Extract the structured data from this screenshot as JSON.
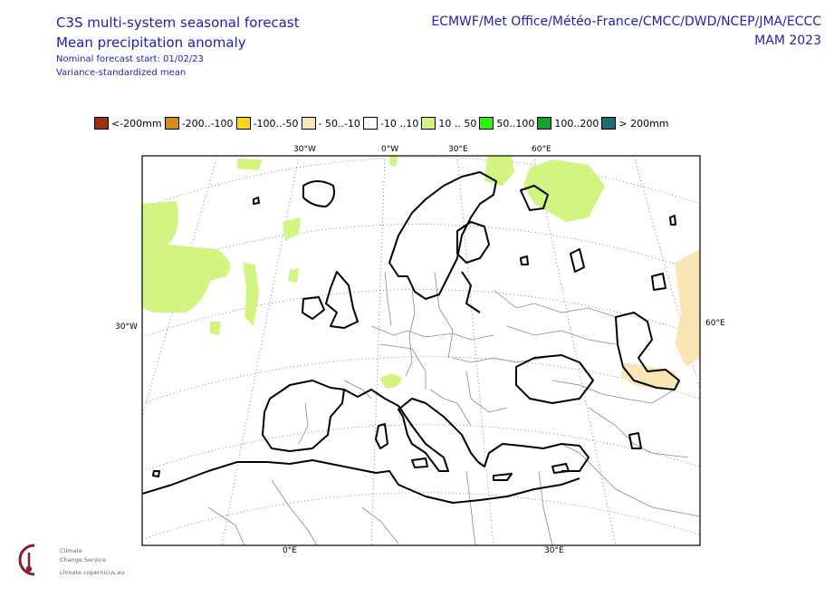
{
  "header": {
    "title_line1": "C3S multi-system seasonal forecast",
    "title_line2": "Mean precipitation anomaly",
    "subtitle1": "Nominal forecast start: 01/02/23",
    "subtitle2": "Variance-standardized mean",
    "models": "ECMWF/Met Office/Météo-France/CMCC/DWD/NCEP/JMA/ECCC",
    "season": "MAM 2023"
  },
  "legend": [
    {
      "label": "<-200mm",
      "color": "#a0330a"
    },
    {
      "label": "-200..-100",
      "color": "#d28a14"
    },
    {
      "label": "-100..-50",
      "color": "#ffd21e"
    },
    {
      "label": "- 50..-10",
      "color": "#fae6b4"
    },
    {
      "label": "-10 ..10",
      "color": "#ffffff"
    },
    {
      "label": "10 .. 50",
      "color": "#d2f582"
    },
    {
      "label": "50..100",
      "color": "#32f014"
    },
    {
      "label": "100..200",
      "color": "#14a032"
    },
    {
      "label": "> 200mm",
      "color": "#1e6e6e"
    }
  ],
  "axes": {
    "top_labels": [
      "30°W",
      "0°W",
      "30°E",
      "60°E"
    ],
    "left_label": "30°W",
    "right_label": "60°E",
    "bottom_labels": [
      "0°E",
      "30°E"
    ]
  },
  "logo": {
    "line1": "Climate",
    "line2": "Change Service",
    "line3": "climate.copernicus.eu"
  },
  "colors": {
    "title": "#1e1eb4",
    "positive_anomaly": "#d2f582",
    "negative_anomaly": "#fae6b4",
    "coastline": "#000000",
    "border": "#888888"
  }
}
